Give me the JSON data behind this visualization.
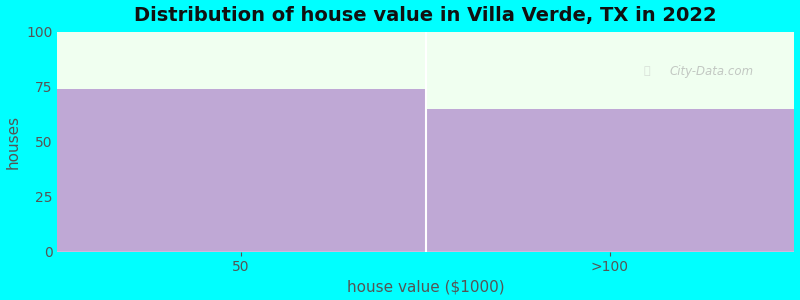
{
  "title": "Distribution of house value in Villa Verde, TX in 2022",
  "xlabel": "house value ($1000)",
  "ylabel": "houses",
  "categories": [
    "50",
    ">100"
  ],
  "values": [
    74,
    65
  ],
  "bar_color": "#BFA8D5",
  "ylim": [
    0,
    100
  ],
  "yticks": [
    0,
    25,
    50,
    75,
    100
  ],
  "background_color": "#00FFFF",
  "plot_bg_color": "#F0FFF0",
  "title_fontsize": 14,
  "label_fontsize": 11,
  "tick_fontsize": 10,
  "watermark": "City-Data.com"
}
